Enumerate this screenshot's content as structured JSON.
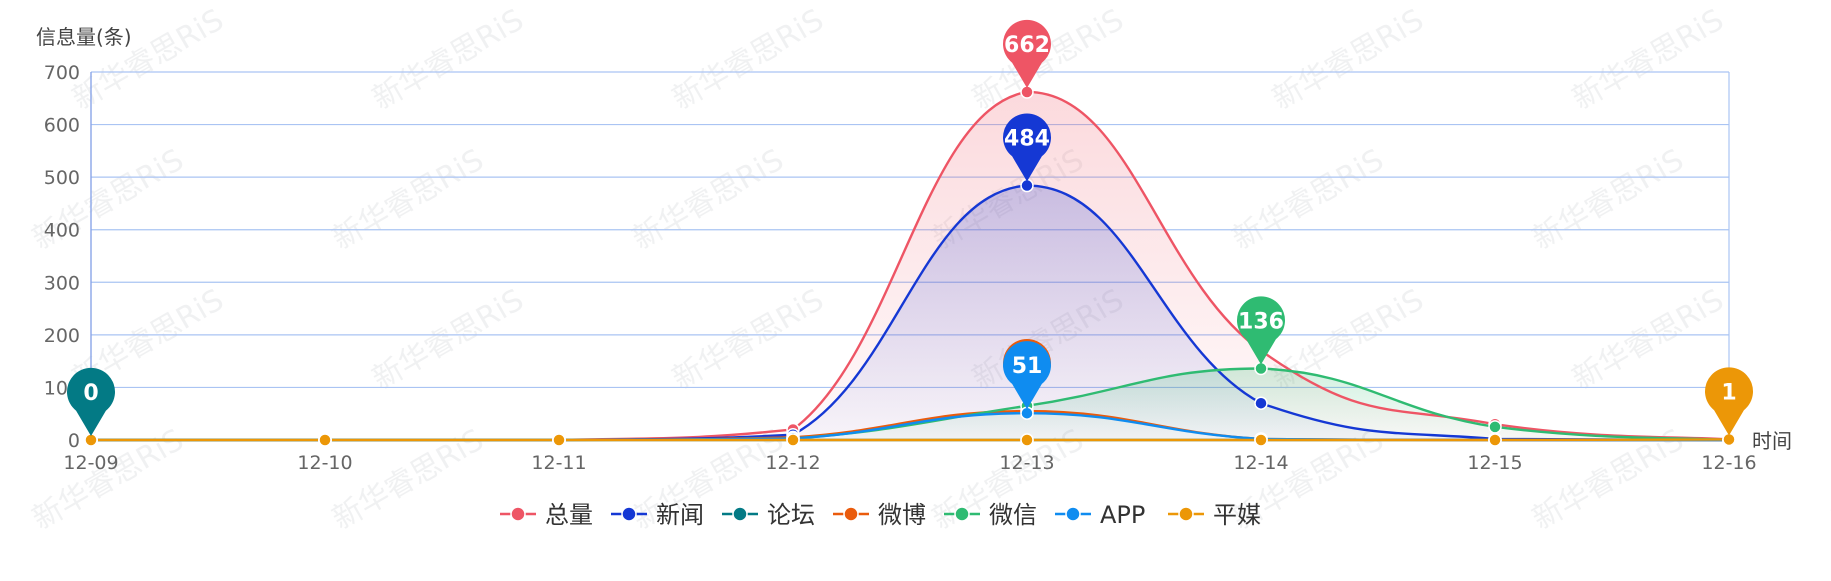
{
  "chart_data": {
    "type": "line",
    "ylabel": "信息量(条)",
    "xlabel": "时间",
    "categories": [
      "12-09",
      "12-10",
      "12-11",
      "12-12",
      "12-13",
      "12-14",
      "12-15",
      "12-16"
    ],
    "ylim": [
      0,
      700
    ],
    "yticks": [
      0,
      100,
      200,
      300,
      400,
      500,
      600,
      700
    ],
    "grid": true,
    "smooth": true,
    "legend_position": "bottom-center",
    "series": [
      {
        "name": "总量",
        "color": "#ee5565",
        "values": [
          0,
          0,
          0,
          20,
          662,
          170,
          30,
          1
        ],
        "area": true,
        "pin": {
          "index": 4,
          "label": "662"
        }
      },
      {
        "name": "新闻",
        "color": "#1538d4",
        "values": [
          0,
          0,
          0,
          10,
          484,
          70,
          2,
          0
        ],
        "area": true,
        "pin": {
          "index": 4,
          "label": "484"
        }
      },
      {
        "name": "论坛",
        "color": "#037a85",
        "values": [
          0,
          0,
          0,
          0,
          0,
          0,
          0,
          0
        ],
        "area": false,
        "pin": {
          "index": 0,
          "label": "0"
        }
      },
      {
        "name": "微博",
        "color": "#ea5b0c",
        "values": [
          0,
          0,
          0,
          5,
          55,
          2,
          0,
          0
        ],
        "area": false,
        "pin": {
          "index": 4,
          "label": ""
        }
      },
      {
        "name": "微信",
        "color": "#2fbb72",
        "values": [
          0,
          0,
          0,
          3,
          65,
          136,
          25,
          0
        ],
        "area": true,
        "pin": {
          "index": 5,
          "label": "136"
        }
      },
      {
        "name": "APP",
        "color": "#0f8cf0",
        "values": [
          0,
          0,
          0,
          3,
          51,
          2,
          0,
          0
        ],
        "area": false,
        "pin": {
          "index": 4,
          "label": "51"
        }
      },
      {
        "name": "平媒",
        "color": "#ec9707",
        "values": [
          0,
          0,
          0,
          0,
          0,
          0,
          0,
          1
        ],
        "area": false,
        "pin": {
          "index": 7,
          "label": "1"
        }
      }
    ],
    "watermark": "新华睿思RiS"
  }
}
